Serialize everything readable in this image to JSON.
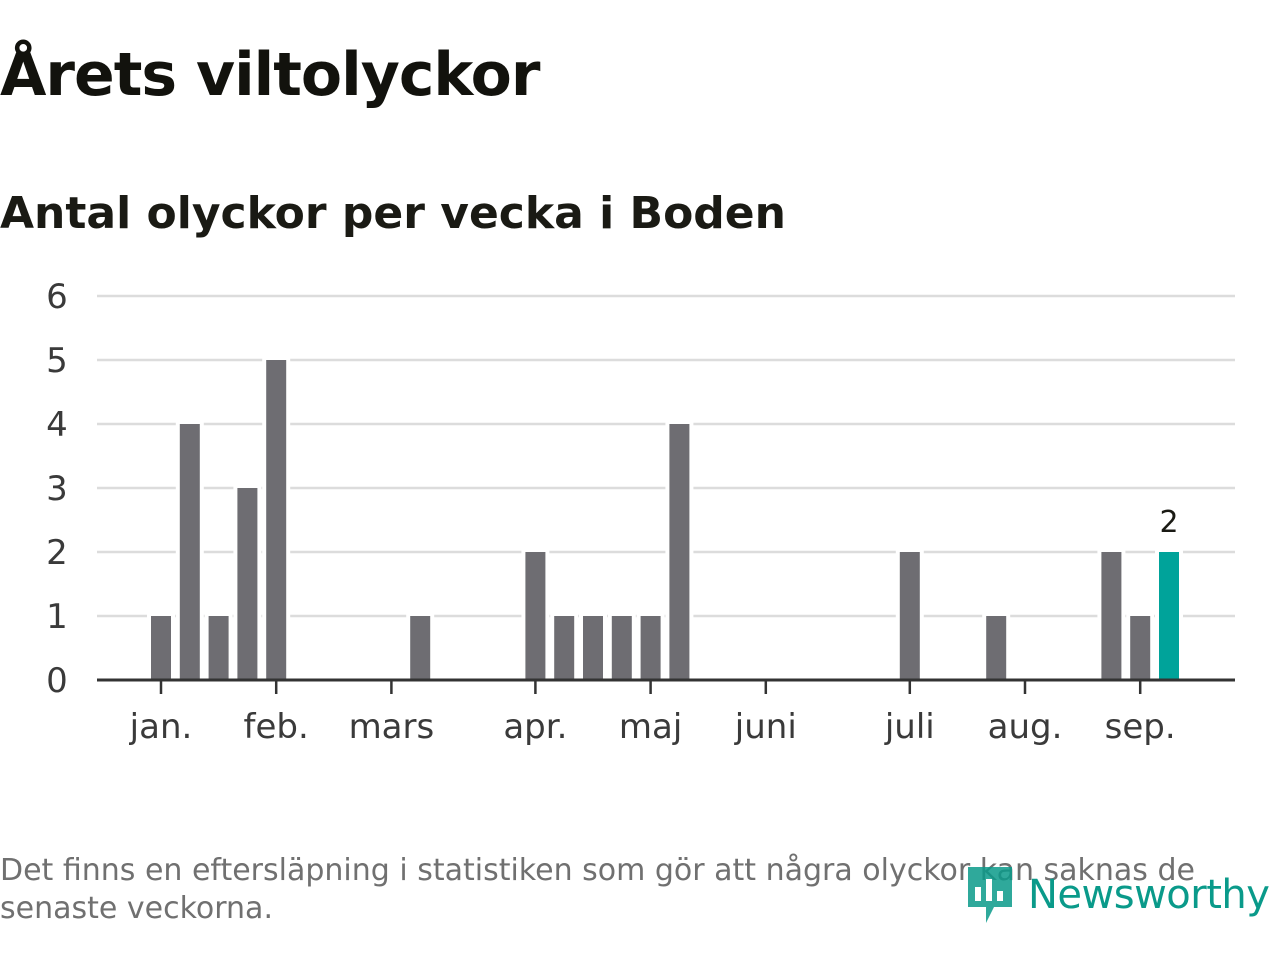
{
  "title": "Årets viltolyckor",
  "subtitle": "Antal olyckor per vecka i Boden",
  "footnote": "Det finns en eftersläpning i statistiken som gör att några olyckor kan saknas de senaste veckorna.",
  "brand": {
    "name": "Newsworthy",
    "color": "#0a9a8a",
    "icon": "newsworthy-logo-icon"
  },
  "colors": {
    "bar": "#6e6d72",
    "highlight": "#00a39a",
    "grid": "#dcdcdc",
    "axis": "#333333"
  },
  "chart_data": {
    "type": "bar",
    "title": "Antal olyckor per vecka i Boden",
    "xlabel": "",
    "ylabel": "",
    "ylim": [
      0,
      6
    ],
    "y_ticks": [
      0,
      1,
      2,
      3,
      4,
      5,
      6
    ],
    "grid": true,
    "x_ticks": [
      {
        "label": "jan.",
        "week": 1
      },
      {
        "label": "feb.",
        "week": 5
      },
      {
        "label": "mars",
        "week": 9
      },
      {
        "label": "apr.",
        "week": 14
      },
      {
        "label": "maj",
        "week": 18
      },
      {
        "label": "juni",
        "week": 22
      },
      {
        "label": "juli",
        "week": 27
      },
      {
        "label": "aug.",
        "week": 31
      },
      {
        "label": "sep.",
        "week": 35
      }
    ],
    "weeks": [
      1,
      2,
      3,
      4,
      5,
      6,
      7,
      8,
      9,
      10,
      11,
      12,
      13,
      14,
      15,
      16,
      17,
      18,
      19,
      20,
      21,
      22,
      23,
      24,
      25,
      26,
      27,
      28,
      29,
      30,
      31,
      32,
      33,
      34,
      35,
      36
    ],
    "values": [
      1,
      4,
      1,
      3,
      5,
      0,
      0,
      0,
      0,
      1,
      0,
      0,
      0,
      2,
      1,
      1,
      1,
      1,
      4,
      0,
      0,
      0,
      0,
      0,
      0,
      0,
      2,
      0,
      0,
      1,
      0,
      0,
      0,
      2,
      1,
      2
    ],
    "highlight_week": 36,
    "highlight_label": "2"
  }
}
